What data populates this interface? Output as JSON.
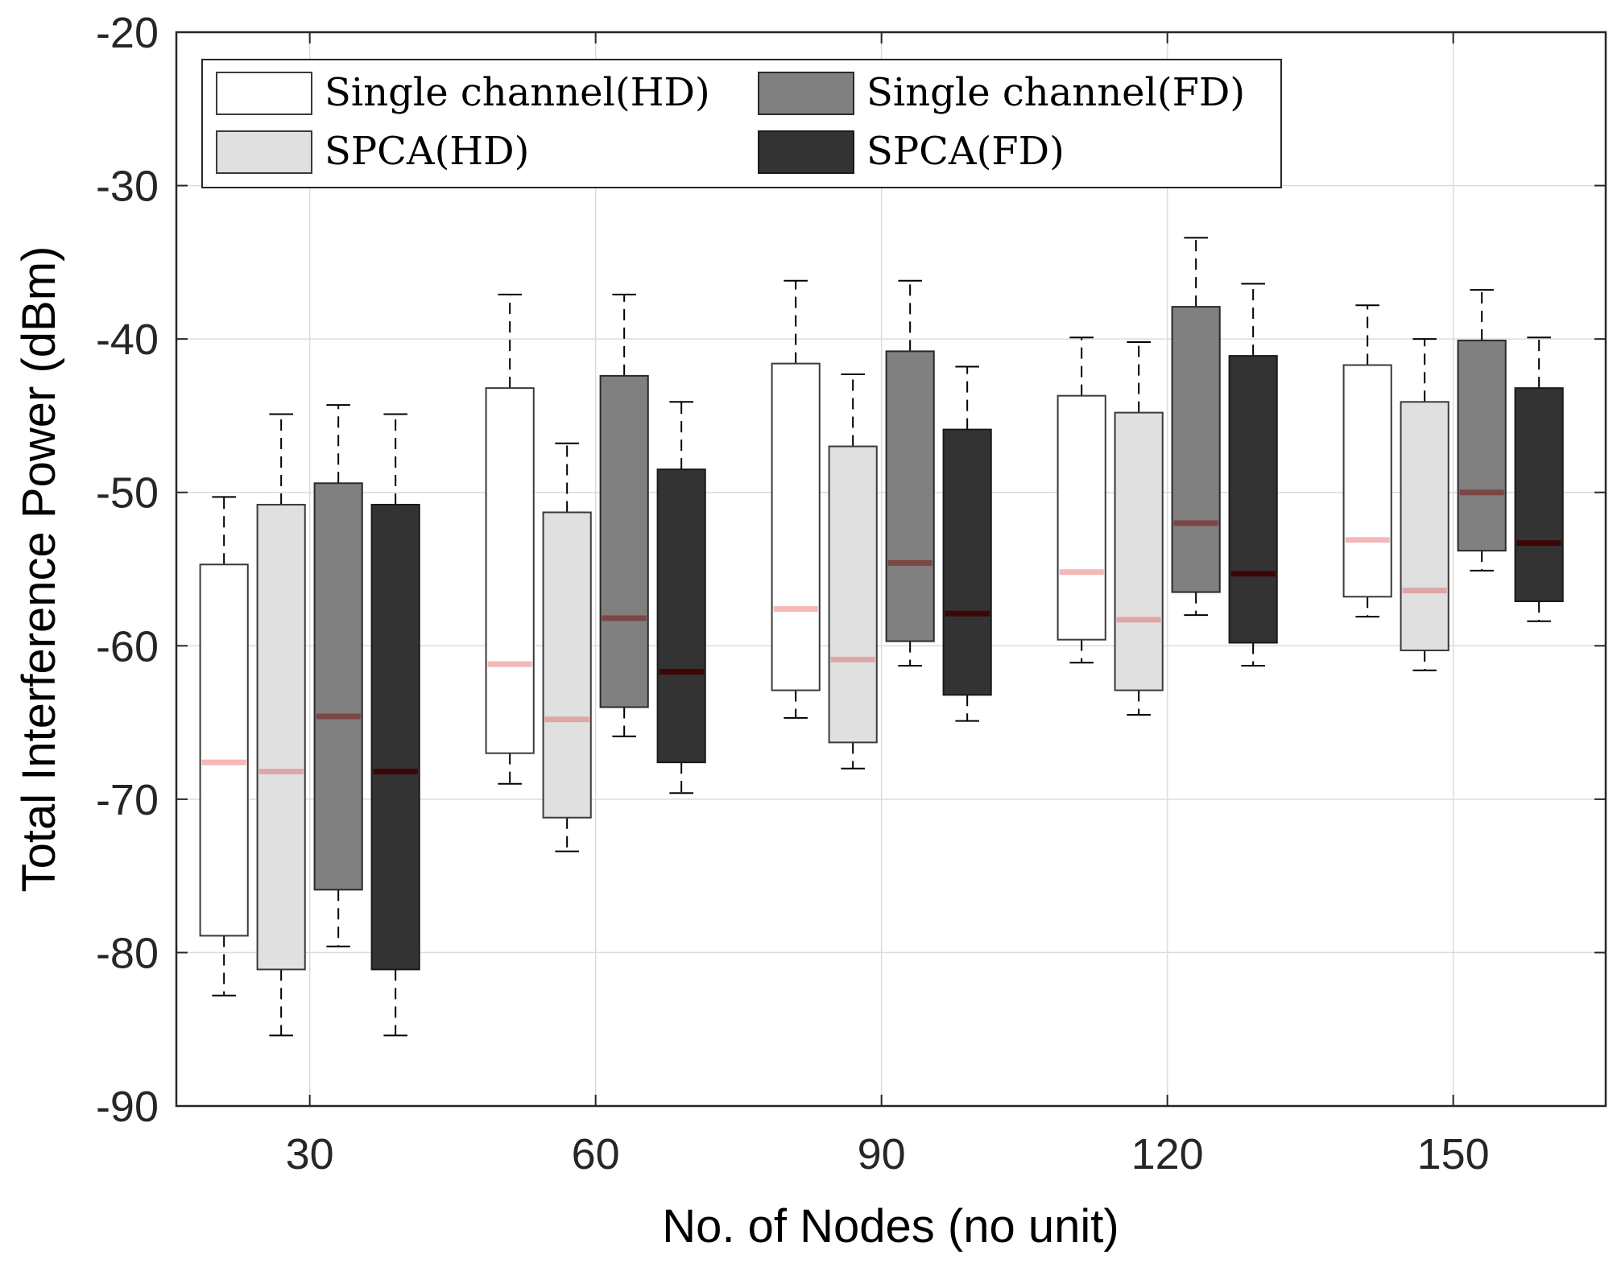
{
  "chart_data": {
    "type": "box",
    "title": "",
    "xlabel": "No. of Nodes (no unit)",
    "ylabel": "Total Interference Power (dBm)",
    "ylim": [
      -90,
      -20
    ],
    "yticks": [
      -90,
      -80,
      -70,
      -60,
      -50,
      -40,
      -30,
      -20
    ],
    "ytick_labels": [
      "-90",
      "-80",
      "-70",
      "-60",
      "-50",
      "-40",
      "-30",
      "-20"
    ],
    "categories": [
      "30",
      "60",
      "90",
      "120",
      "150"
    ],
    "category_values": [
      30,
      60,
      90,
      120,
      150
    ],
    "xlim": [
      16,
      166
    ],
    "box_offsets": [
      -9,
      -3,
      3,
      9
    ],
    "box_width": 5,
    "grid": true,
    "legend_position": "top-left",
    "series": [
      {
        "name": "Single channel(HD)",
        "fill": "#ffffff",
        "edge": "#3a3a3a",
        "median_color": "#f4b8b8",
        "boxes": [
          {
            "whisker_low": -82.8,
            "q1": -78.9,
            "median": -67.6,
            "q3": -54.7,
            "whisker_high": -50.3
          },
          {
            "whisker_low": -69.0,
            "q1": -67.0,
            "median": -61.2,
            "q3": -43.2,
            "whisker_high": -37.1
          },
          {
            "whisker_low": -64.7,
            "q1": -62.9,
            "median": -57.6,
            "q3": -41.6,
            "whisker_high": -36.2
          },
          {
            "whisker_low": -61.1,
            "q1": -59.6,
            "median": -55.2,
            "q3": -43.7,
            "whisker_high": -39.9
          },
          {
            "whisker_low": -58.1,
            "q1": -56.8,
            "median": -53.1,
            "q3": -41.7,
            "whisker_high": -37.8
          }
        ]
      },
      {
        "name": "SPCA(HD)",
        "fill": "#e0e0e0",
        "edge": "#3a3a3a",
        "median_color": "#dea7a7",
        "boxes": [
          {
            "whisker_low": -85.4,
            "q1": -81.1,
            "median": -68.2,
            "q3": -50.8,
            "whisker_high": -44.9
          },
          {
            "whisker_low": -73.4,
            "q1": -71.2,
            "median": -64.8,
            "q3": -51.3,
            "whisker_high": -46.8
          },
          {
            "whisker_low": -68.0,
            "q1": -66.3,
            "median": -60.9,
            "q3": -47.0,
            "whisker_high": -42.3
          },
          {
            "whisker_low": -64.5,
            "q1": -62.9,
            "median": -58.3,
            "q3": -44.8,
            "whisker_high": -40.2
          },
          {
            "whisker_low": -61.6,
            "q1": -60.3,
            "median": -56.4,
            "q3": -44.1,
            "whisker_high": -40.0
          }
        ]
      },
      {
        "name": "Single channel(FD)",
        "fill": "#808080",
        "edge": "#2a2a2a",
        "median_color": "#7a4646",
        "boxes": [
          {
            "whisker_low": -79.6,
            "q1": -75.9,
            "median": -64.6,
            "q3": -49.4,
            "whisker_high": -44.3
          },
          {
            "whisker_low": -65.9,
            "q1": -64.0,
            "median": -58.2,
            "q3": -42.4,
            "whisker_high": -37.1
          },
          {
            "whisker_low": -61.3,
            "q1": -59.7,
            "median": -54.6,
            "q3": -40.8,
            "whisker_high": -36.2
          },
          {
            "whisker_low": -58.0,
            "q1": -56.5,
            "median": -52.0,
            "q3": -37.9,
            "whisker_high": -33.4
          },
          {
            "whisker_low": -55.1,
            "q1": -53.8,
            "median": -50.0,
            "q3": -40.1,
            "whisker_high": -36.8
          }
        ]
      },
      {
        "name": "SPCA(FD)",
        "fill": "#333333",
        "edge": "#1a1a1a",
        "median_color": "#3d0606",
        "boxes": [
          {
            "whisker_low": -85.4,
            "q1": -81.1,
            "median": -68.2,
            "q3": -50.8,
            "whisker_high": -44.9
          },
          {
            "whisker_low": -69.6,
            "q1": -67.6,
            "median": -61.7,
            "q3": -48.5,
            "whisker_high": -44.1
          },
          {
            "whisker_low": -64.9,
            "q1": -63.2,
            "median": -57.9,
            "q3": -45.9,
            "whisker_high": -41.8
          },
          {
            "whisker_low": -61.3,
            "q1": -59.8,
            "median": -55.3,
            "q3": -41.1,
            "whisker_high": -36.4
          },
          {
            "whisker_low": -58.4,
            "q1": -57.1,
            "median": -53.3,
            "q3": -43.2,
            "whisker_high": -39.9
          }
        ]
      }
    ],
    "legend": {
      "columns": 2,
      "order": [
        "Single channel(HD)",
        "Single channel(FD)",
        "SPCA(HD)",
        "SPCA(FD)"
      ]
    }
  }
}
